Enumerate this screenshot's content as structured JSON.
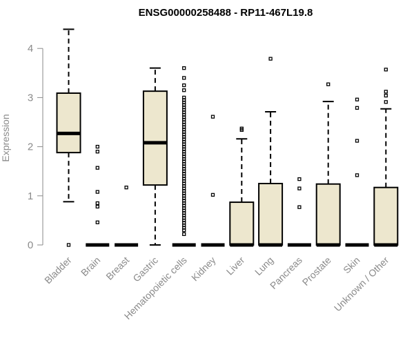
{
  "chart_data": {
    "type": "boxplot",
    "title": "ENSG00000258488 - RP11-467L19.8",
    "xlabel": "",
    "ylabel": "Expression",
    "ylim": [
      0,
      4.4
    ],
    "yticks": [
      0,
      1,
      2,
      3,
      4
    ],
    "box_fill": "#ede7ce",
    "axis_color": "#8a8a8a",
    "categories": [
      "Bladder",
      "Brain",
      "Breast",
      "Gastric",
      "Hematopoietic cells",
      "Kidney",
      "Liver",
      "Lung",
      "Pancreas",
      "Prostate",
      "Skin",
      "Unknown / Other"
    ],
    "boxes": [
      {
        "name": "Bladder",
        "whisker_low": 0.88,
        "q1": 1.88,
        "median": 2.27,
        "q3": 3.09,
        "whisker_high": 4.39,
        "outliers": [
          0.0
        ]
      },
      {
        "name": "Brain",
        "whisker_low": 0,
        "q1": 0,
        "median": 0,
        "q3": 0,
        "whisker_high": 0,
        "outliers": [
          2.0,
          1.9,
          1.57,
          1.08,
          0.85,
          0.78,
          0.46
        ]
      },
      {
        "name": "Breast",
        "whisker_low": 0,
        "q1": 0,
        "median": 0,
        "q3": 0,
        "whisker_high": 0,
        "outliers": [
          1.17
        ]
      },
      {
        "name": "Gastric",
        "whisker_low": 0.0,
        "q1": 1.22,
        "median": 2.08,
        "q3": 3.13,
        "whisker_high": 3.6,
        "outliers": []
      },
      {
        "name": "Hematopoietic cells",
        "whisker_low": 0,
        "q1": 0,
        "median": 0,
        "q3": 0,
        "whisker_high": 0,
        "outliers": [
          3.6,
          3.4,
          3.25,
          3.15,
          3.0,
          2.95,
          2.9,
          2.85,
          2.8,
          2.75,
          2.7,
          2.65,
          2.6,
          2.55,
          2.5,
          2.45,
          2.4,
          2.35,
          2.3,
          2.25,
          2.2,
          2.15,
          2.1,
          2.05,
          2.0,
          1.95,
          1.9,
          1.85,
          1.8,
          1.75,
          1.7,
          1.65,
          1.6,
          1.55,
          1.5,
          1.45,
          1.4,
          1.35,
          1.3,
          1.25,
          1.2,
          1.15,
          1.1,
          1.05,
          1.0,
          0.95,
          0.9,
          0.85,
          0.8,
          0.75,
          0.7,
          0.65,
          0.6,
          0.55,
          0.5,
          0.45,
          0.4,
          0.35,
          0.3,
          0.22
        ]
      },
      {
        "name": "Kidney",
        "whisker_low": 0,
        "q1": 0,
        "median": 0,
        "q3": 0,
        "whisker_high": 0,
        "outliers": [
          2.61,
          1.02
        ]
      },
      {
        "name": "Liver",
        "whisker_low": 0,
        "q1": 0,
        "median": 0,
        "q3": 0.87,
        "whisker_high": 2.16,
        "outliers": [
          2.37,
          2.34
        ]
      },
      {
        "name": "Lung",
        "whisker_low": 0,
        "q1": 0,
        "median": 0,
        "q3": 1.25,
        "whisker_high": 2.71,
        "outliers": [
          3.79
        ]
      },
      {
        "name": "Pancreas",
        "whisker_low": 0,
        "q1": 0,
        "median": 0,
        "q3": 0,
        "whisker_high": 0,
        "outliers": [
          1.34,
          1.15,
          0.77
        ]
      },
      {
        "name": "Prostate",
        "whisker_low": 0,
        "q1": 0,
        "median": 0,
        "q3": 1.24,
        "whisker_high": 2.92,
        "outliers": [
          3.27
        ]
      },
      {
        "name": "Skin",
        "whisker_low": 0,
        "q1": 0,
        "median": 0,
        "q3": 0,
        "whisker_high": 0,
        "outliers": [
          2.96,
          2.79,
          2.12,
          1.42
        ]
      },
      {
        "name": "Unknown / Other",
        "whisker_low": 0,
        "q1": 0,
        "median": 0,
        "q3": 1.17,
        "whisker_high": 2.77,
        "outliers": [
          3.57,
          3.12,
          3.04,
          2.91
        ]
      }
    ]
  }
}
